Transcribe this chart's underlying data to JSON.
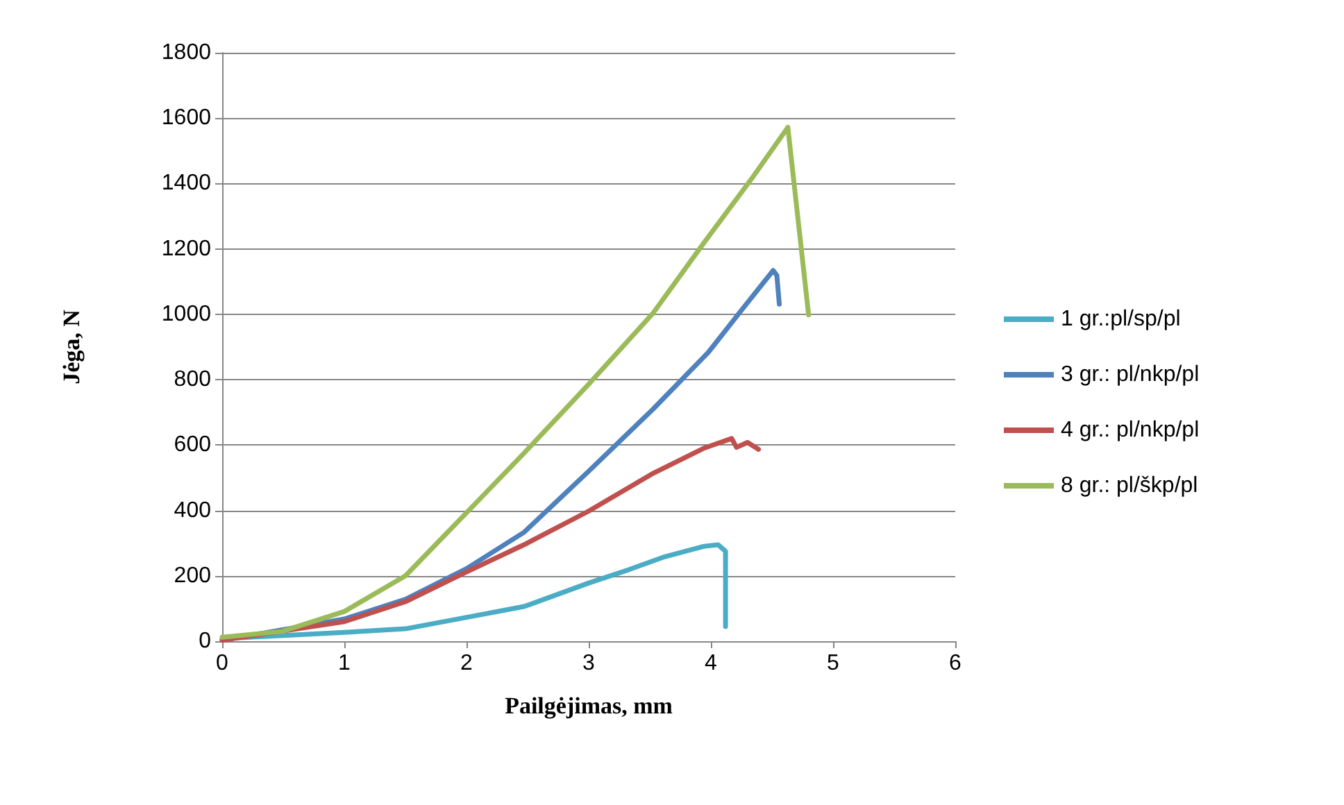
{
  "chart_data": {
    "type": "line",
    "xlabel": "Pailgėjimas, mm",
    "ylabel": "Jėga, N",
    "xlim": [
      0,
      6
    ],
    "xticks": [
      0,
      1,
      2,
      3,
      4,
      5,
      6
    ],
    "ylim": [
      0,
      1800
    ],
    "yticks": [
      0,
      200,
      400,
      600,
      800,
      1000,
      1200,
      1400,
      1600,
      1800
    ],
    "grid": "y",
    "legend": "right",
    "marker": "none",
    "line_style": "solid",
    "series": [
      {
        "name": "1 gr.:pl/sp/pl",
        "color": "#4bacc6",
        "x": [
          0,
          1,
          1.5,
          2,
          2.47,
          3,
          3.33,
          3.61,
          3.94,
          4.06,
          4.12,
          4.12
        ],
        "values": [
          8,
          27,
          38,
          73,
          106,
          178,
          219,
          257,
          290,
          295,
          275,
          45
        ]
      },
      {
        "name": "3 gr.: pl/nkp/pl",
        "color": "#4f81bd",
        "x": [
          0,
          1,
          1.5,
          2,
          2.47,
          3,
          3.53,
          3.98,
          4.26,
          4.51,
          4.54,
          4.56
        ],
        "values": [
          3,
          68,
          128,
          222,
          333,
          520,
          711,
          884,
          1017,
          1134,
          1119,
          1031
        ]
      },
      {
        "name": "4 gr.: pl/nkp/pl",
        "color": "#c0504d",
        "x": [
          0,
          1,
          1.5,
          2,
          2.47,
          3,
          3.53,
          3.94,
          4.17,
          4.21,
          4.3,
          4.39
        ],
        "values": [
          3,
          60,
          121,
          212,
          295,
          398,
          514,
          590,
          620,
          593,
          608,
          587
        ]
      },
      {
        "name": "8 gr.: pl/škp/pl",
        "color": "#9bbb59",
        "x": [
          0,
          0.49,
          1,
          1.5,
          2,
          2.47,
          3,
          3.53,
          3.94,
          4.34,
          4.63,
          4.8
        ],
        "values": [
          12,
          30,
          91,
          200,
          393,
          575,
          786,
          1005,
          1217,
          1418,
          1572,
          998
        ]
      }
    ]
  }
}
